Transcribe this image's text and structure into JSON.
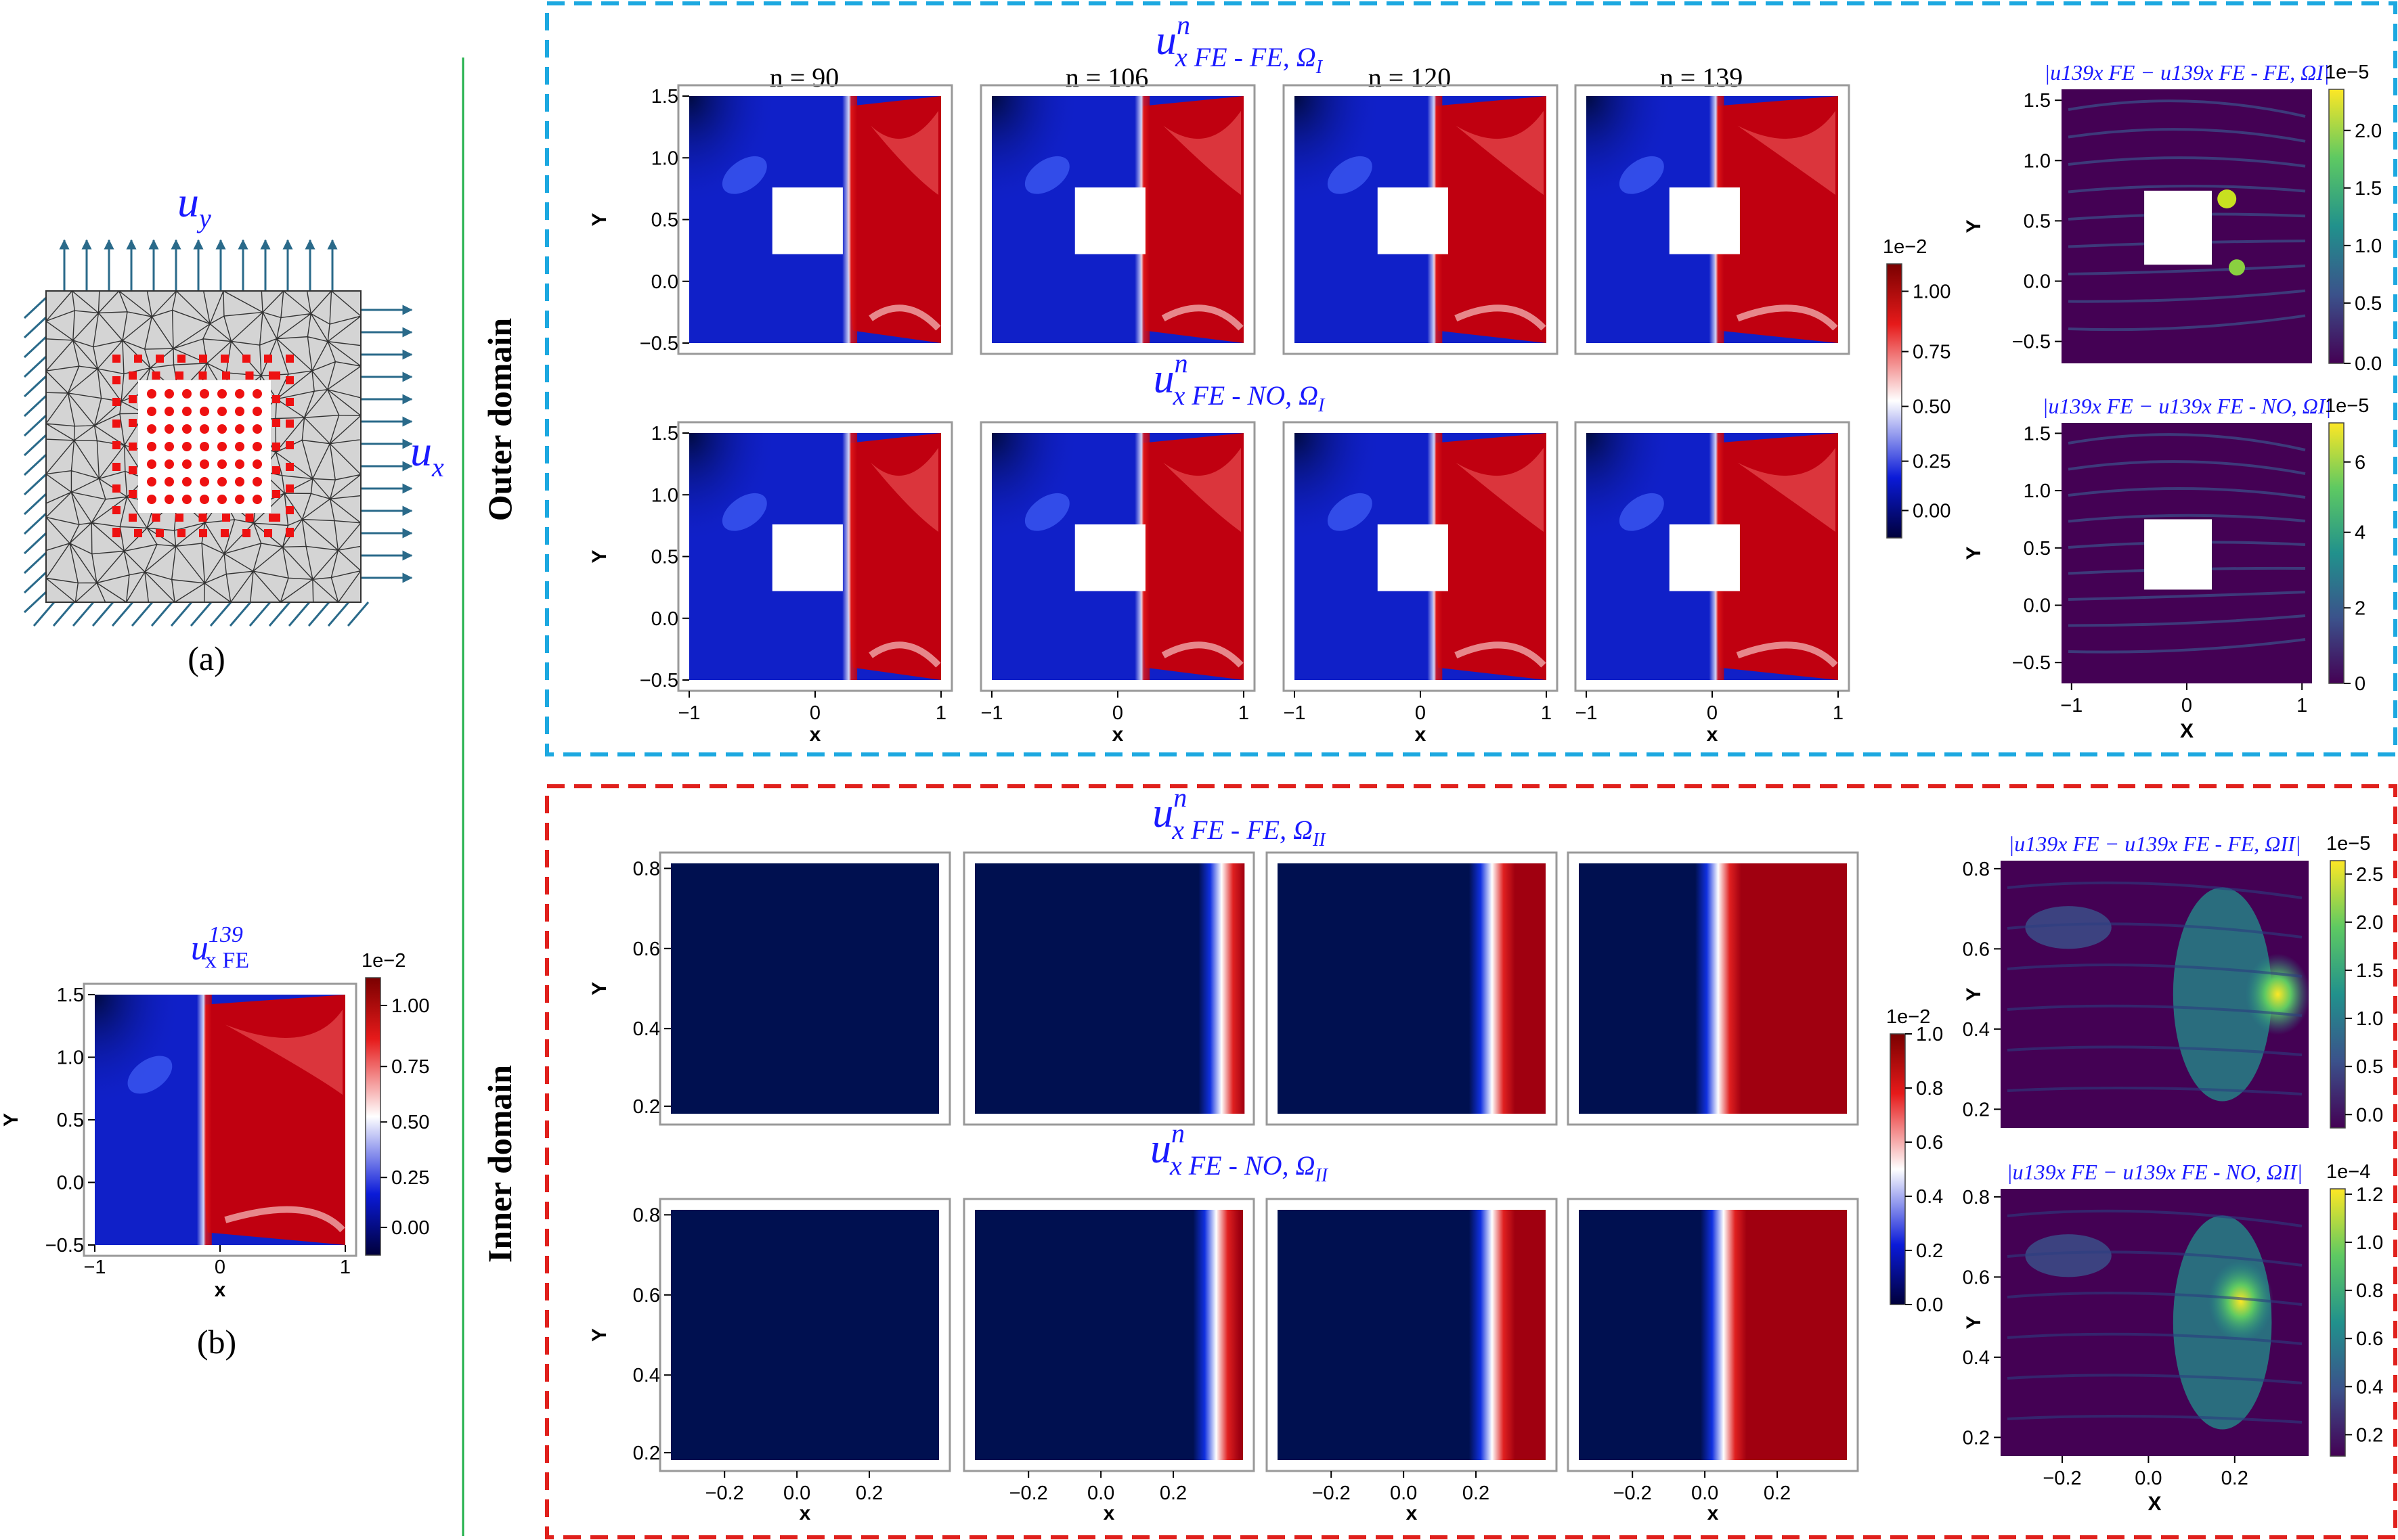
{
  "figure": {
    "panel_a": {
      "caption": "(a)",
      "load_y_sym": "u",
      "load_y_sub": "y",
      "load_x_sym": "u",
      "load_x_sub": "x"
    },
    "panel_b": {
      "caption": "(b)",
      "title_sym": "u",
      "title_sup": "139",
      "title_sub": "x FE",
      "x_label": "x",
      "y_label": "Y",
      "x_ticks": [
        "−1",
        "0",
        "1"
      ],
      "y_ticks": [
        "1.5",
        "1.0",
        "0.5",
        "0.0",
        "−0.5"
      ],
      "cbar_exp": "1e−2",
      "cbar_ticks": [
        "1.00",
        "0.75",
        "0.50",
        "0.25",
        "0.00"
      ]
    },
    "outer": {
      "side_label": "Outer domain",
      "row1_title": {
        "sym": "u",
        "sup": "n",
        "sub": "x FE - FE, Ω",
        "subsub": "I"
      },
      "row2_title": {
        "sym": "u",
        "sup": "n",
        "sub": "x FE - NO, Ω",
        "subsub": "I"
      },
      "n_labels": [
        "n = 90",
        "n = 106",
        "n = 120",
        "n = 139"
      ],
      "x_ticks": [
        "−1",
        "0",
        "1"
      ],
      "y_ticks": [
        "1.5",
        "1.0",
        "0.5",
        "0.0",
        "−0.5"
      ],
      "x_label": "x",
      "y_label": "Y",
      "cbar_exp": "1e−2",
      "cbar_ticks": [
        "1.00",
        "0.75",
        "0.50",
        "0.25",
        "0.00"
      ],
      "err1": {
        "label": "|u139x FE − u139x FE - FE, ΩI|",
        "exp": "1e−5",
        "ticks": [
          "2.0",
          "1.5",
          "1.0",
          "0.5",
          "0.0"
        ]
      },
      "err2": {
        "label": "|u139x FE − u139x FE - NO, ΩI|",
        "exp": "1e−5",
        "ticks": [
          "6",
          "4",
          "2",
          "0"
        ]
      },
      "err_x_label": "X"
    },
    "inner": {
      "side_label": "Inner domain",
      "row1_title": {
        "sym": "u",
        "sup": "n",
        "sub": "x FE - FE, Ω",
        "subsub": "II"
      },
      "row2_title": {
        "sym": "u",
        "sup": "n",
        "sub": "x FE - NO, Ω",
        "subsub": "II"
      },
      "x_ticks": [
        "−0.2",
        "0.0",
        "0.2"
      ],
      "y_ticks": [
        "0.8",
        "0.6",
        "0.4",
        "0.2"
      ],
      "x_label": "x",
      "y_label": "Y",
      "cbar_exp": "1e−2",
      "cbar_ticks": [
        "1.0",
        "0.8",
        "0.6",
        "0.4",
        "0.2",
        "0.0"
      ],
      "err1": {
        "label": "|u139x FE − u139x FE - FE, ΩII|",
        "exp": "1e−5",
        "ticks": [
          "2.5",
          "2.0",
          "1.5",
          "1.0",
          "0.5",
          "0.0"
        ]
      },
      "err2": {
        "label": "|u139x FE − u139x FE - NO, ΩII|",
        "exp": "1e−4",
        "ticks": [
          "1.2",
          "1.0",
          "0.8",
          "0.6",
          "0.4",
          "0.2"
        ]
      },
      "err_x_label": "X"
    },
    "colors": {
      "outer_box": "#1ca8e0",
      "inner_box": "#e0201c",
      "divider": "#22b04a",
      "field_blue": "#1020c8",
      "field_red": "#c00010",
      "field_navy": "#001050",
      "node_red": "#ee1111",
      "arrow": "#2a6a8a",
      "title_blue": "#1a1aff"
    }
  }
}
